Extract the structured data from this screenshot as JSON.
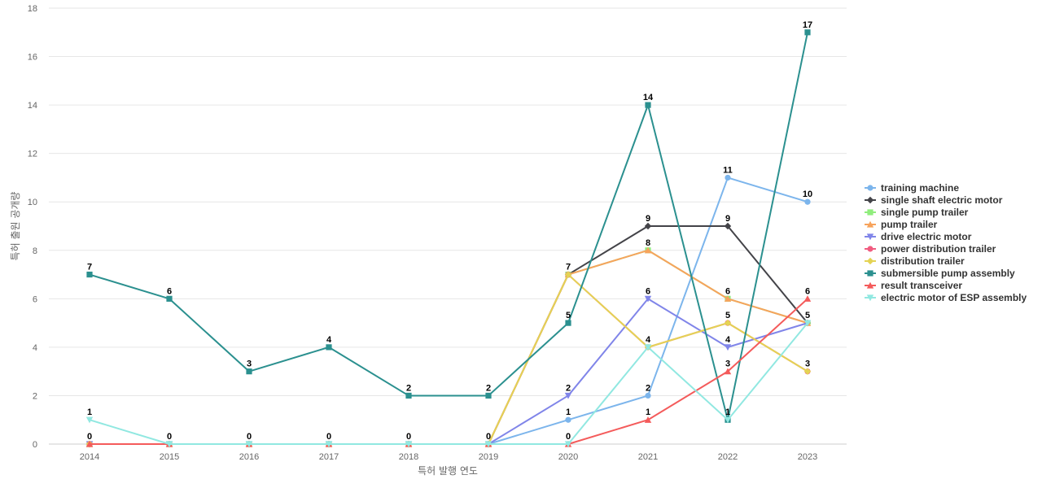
{
  "chart_data": {
    "type": "line",
    "title": "",
    "xlabel": "특허 발행 연도",
    "ylabel": "특허 출원 공개량",
    "x": [
      "2014",
      "2015",
      "2016",
      "2017",
      "2018",
      "2019",
      "2020",
      "2021",
      "2022",
      "2023"
    ],
    "ylim": [
      0,
      18
    ],
    "yticks": [
      0,
      2,
      4,
      6,
      8,
      10,
      12,
      14,
      16,
      18
    ],
    "grid": true,
    "legend": "right",
    "series": [
      {
        "name": "training machine",
        "color": "#7cb5ec",
        "marker": "circle",
        "values": [
          0,
          0,
          0,
          0,
          0,
          0,
          1,
          2,
          11,
          10
        ]
      },
      {
        "name": "single shaft electric motor",
        "color": "#434348",
        "marker": "diamond",
        "values": [
          0,
          0,
          0,
          0,
          0,
          0,
          7,
          9,
          9,
          5
        ]
      },
      {
        "name": "single pump trailer",
        "color": "#90ed7d",
        "marker": "square",
        "values": [
          0,
          0,
          0,
          0,
          0,
          0,
          7,
          8,
          6,
          5
        ]
      },
      {
        "name": "pump trailer",
        "color": "#f7a35c",
        "marker": "triangle",
        "values": [
          0,
          0,
          0,
          0,
          0,
          0,
          7,
          8,
          6,
          5
        ]
      },
      {
        "name": "drive electric motor",
        "color": "#8085e9",
        "marker": "triangle-down",
        "values": [
          0,
          0,
          0,
          0,
          0,
          0,
          2,
          6,
          4,
          5
        ]
      },
      {
        "name": "power distribution trailer",
        "color": "#f15c80",
        "marker": "circle",
        "values": [
          0,
          0,
          0,
          0,
          0,
          0,
          7,
          4,
          5,
          3
        ]
      },
      {
        "name": "distribution trailer",
        "color": "#e4d354",
        "marker": "diamond",
        "values": [
          0,
          0,
          0,
          0,
          0,
          0,
          7,
          4,
          5,
          3
        ]
      },
      {
        "name": "submersible pump assembly",
        "color": "#2b908f",
        "marker": "square",
        "values": [
          7,
          6,
          3,
          4,
          2,
          2,
          5,
          14,
          1,
          17
        ]
      },
      {
        "name": "result transceiver",
        "color": "#f45b5b",
        "marker": "triangle",
        "values": [
          0,
          0,
          0,
          0,
          0,
          0,
          0,
          1,
          3,
          6
        ]
      },
      {
        "name": "electric motor of ESP assembly",
        "color": "#91e8e1",
        "marker": "triangle-down",
        "values": [
          1,
          0,
          0,
          0,
          0,
          0,
          0,
          4,
          1,
          5
        ]
      }
    ],
    "data_labels": [
      {
        "x": "2014",
        "y": 7,
        "text": "7"
      },
      {
        "x": "2015",
        "y": 6,
        "text": "6"
      },
      {
        "x": "2016",
        "y": 3,
        "text": "3"
      },
      {
        "x": "2017",
        "y": 4,
        "text": "4"
      },
      {
        "x": "2018",
        "y": 2,
        "text": "2"
      },
      {
        "x": "2019",
        "y": 2,
        "text": "2"
      },
      {
        "x": "2020",
        "y": 5,
        "text": "5"
      },
      {
        "x": "2021",
        "y": 14,
        "text": "14"
      },
      {
        "x": "2022",
        "y": 1,
        "text": "1"
      },
      {
        "x": "2023",
        "y": 17,
        "text": "17"
      },
      {
        "x": "2014",
        "y": 1,
        "text": "1"
      },
      {
        "x": "2014",
        "y": 0,
        "text": "0"
      },
      {
        "x": "2015",
        "y": 0,
        "text": "0"
      },
      {
        "x": "2016",
        "y": 0,
        "text": "0"
      },
      {
        "x": "2017",
        "y": 0,
        "text": "0"
      },
      {
        "x": "2018",
        "y": 0,
        "text": "0"
      },
      {
        "x": "2019",
        "y": 0,
        "text": "0"
      },
      {
        "x": "2020",
        "y": 0,
        "text": "0"
      },
      {
        "x": "2020",
        "y": 7,
        "text": "7"
      },
      {
        "x": "2020",
        "y": 2,
        "text": "2"
      },
      {
        "x": "2020",
        "y": 1,
        "text": "1"
      },
      {
        "x": "2021",
        "y": 9,
        "text": "9"
      },
      {
        "x": "2021",
        "y": 8,
        "text": "8"
      },
      {
        "x": "2021",
        "y": 6,
        "text": "6"
      },
      {
        "x": "2021",
        "y": 4,
        "text": "4"
      },
      {
        "x": "2021",
        "y": 2,
        "text": "2"
      },
      {
        "x": "2021",
        "y": 1,
        "text": "1"
      },
      {
        "x": "2022",
        "y": 11,
        "text": "11"
      },
      {
        "x": "2022",
        "y": 9,
        "text": "9"
      },
      {
        "x": "2022",
        "y": 6,
        "text": "6"
      },
      {
        "x": "2022",
        "y": 5,
        "text": "5"
      },
      {
        "x": "2022",
        "y": 4,
        "text": "4"
      },
      {
        "x": "2022",
        "y": 3,
        "text": "3"
      },
      {
        "x": "2023",
        "y": 10,
        "text": "10"
      },
      {
        "x": "2023",
        "y": 6,
        "text": "6"
      },
      {
        "x": "2023",
        "y": 5,
        "text": "5"
      },
      {
        "x": "2023",
        "y": 3,
        "text": "3"
      }
    ]
  }
}
